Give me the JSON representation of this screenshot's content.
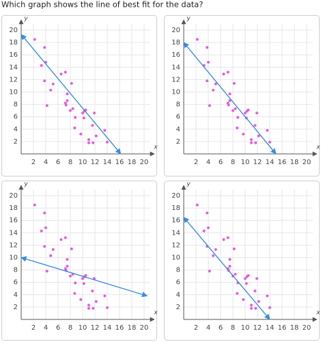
{
  "question": "Which graph shows the line of best fit for the data?",
  "chart_data": [
    {
      "type": "scatter",
      "xlabel": "x",
      "ylabel": "y",
      "xlim": [
        0,
        21
      ],
      "ylim": [
        0,
        21
      ],
      "xticks": [
        2,
        4,
        6,
        8,
        10,
        12,
        14,
        16,
        18,
        20
      ],
      "yticks": [
        2,
        4,
        6,
        8,
        10,
        12,
        14,
        16,
        18,
        20
      ],
      "grid": true,
      "series": [
        {
          "color": "#e45ce0",
          "x": [
            2.2,
            3.3,
            3.8,
            4,
            3.8,
            4.2,
            4.8,
            5.2,
            6.5,
            7.2,
            7.2,
            7.5,
            7.5,
            8,
            8.2,
            8.4,
            8.8,
            8.7,
            9.7,
            10,
            10.3,
            10.5,
            10.2,
            11,
            11,
            11.6,
            11.7,
            11.9,
            12.2,
            13.6,
            14,
            7.3
          ],
          "values": [
            18.5,
            14.3,
            17.2,
            14.8,
            11.8,
            7.8,
            10.3,
            11.3,
            12.9,
            13.2,
            8.2,
            8.6,
            9.7,
            7,
            11.4,
            7.3,
            5.9,
            4.2,
            3.2,
            6.6,
            6.9,
            7.1,
            5.8,
            2.3,
            1.8,
            4.6,
            1.8,
            6.6,
            2.9,
            3.8,
            1.9,
            7.9
          ]
        }
      ],
      "line": {
        "color": "#3a8de0",
        "x": [
          0,
          16.2
        ],
        "values": [
          19.3,
          0
        ]
      }
    },
    {
      "type": "scatter",
      "xlabel": "x",
      "ylabel": "y",
      "xlim": [
        0,
        21
      ],
      "ylim": [
        0,
        21
      ],
      "xticks": [
        2,
        4,
        6,
        8,
        10,
        12,
        14,
        16,
        18,
        20
      ],
      "yticks": [
        2,
        4,
        6,
        8,
        10,
        12,
        14,
        16,
        18,
        20
      ],
      "grid": true,
      "series": [
        {
          "color": "#e45ce0",
          "x": [
            2.2,
            3.3,
            3.8,
            4,
            3.8,
            4.2,
            4.8,
            5.2,
            6.5,
            7.2,
            7.2,
            7.5,
            7.5,
            8,
            8.2,
            8.4,
            8.8,
            8.7,
            9.7,
            10,
            10.3,
            10.5,
            10.2,
            11,
            11,
            11.6,
            11.7,
            11.9,
            12.2,
            13.6,
            14,
            7.3
          ],
          "values": [
            18.5,
            14.3,
            17.2,
            14.8,
            11.8,
            7.8,
            10.3,
            11.3,
            12.9,
            13.2,
            8.2,
            8.6,
            9.7,
            7,
            11.4,
            7.3,
            5.9,
            4.2,
            3.2,
            6.6,
            6.9,
            7.1,
            5.8,
            2.3,
            1.8,
            4.6,
            1.8,
            6.6,
            2.9,
            3.8,
            1.9,
            7.9
          ]
        }
      ],
      "line": {
        "color": "#3a8de0",
        "x": [
          0,
          15
        ],
        "values": [
          18,
          0
        ]
      }
    },
    {
      "type": "scatter",
      "xlabel": "x",
      "ylabel": "y",
      "xlim": [
        0,
        21
      ],
      "ylim": [
        0,
        21
      ],
      "xticks": [
        2,
        4,
        6,
        8,
        10,
        12,
        14,
        16,
        18,
        20
      ],
      "yticks": [
        2,
        4,
        6,
        8,
        10,
        12,
        14,
        16,
        18,
        20
      ],
      "grid": true,
      "series": [
        {
          "color": "#e45ce0",
          "x": [
            2.2,
            3.3,
            3.8,
            4,
            3.8,
            4.2,
            4.8,
            5.2,
            6.5,
            7.2,
            7.2,
            7.5,
            7.5,
            8,
            8.2,
            8.4,
            8.8,
            8.7,
            9.7,
            10,
            10.3,
            10.5,
            10.2,
            11,
            11,
            11.6,
            11.7,
            11.9,
            12.2,
            13.6,
            14,
            7.3
          ],
          "values": [
            18.5,
            14.3,
            17.2,
            14.8,
            11.8,
            7.8,
            10.3,
            11.3,
            12.9,
            13.2,
            8.2,
            8.6,
            9.7,
            7,
            11.4,
            7.3,
            5.9,
            4.2,
            3.2,
            6.6,
            6.9,
            7.1,
            5.8,
            2.3,
            1.8,
            4.6,
            1.8,
            6.6,
            2.9,
            3.8,
            1.9,
            7.9
          ]
        }
      ],
      "line": {
        "color": "#3a8de0",
        "x": [
          0,
          20.5
        ],
        "values": [
          10,
          3.8
        ]
      }
    },
    {
      "type": "scatter",
      "xlabel": "x",
      "ylabel": "y",
      "xlim": [
        0,
        21
      ],
      "ylim": [
        0,
        21
      ],
      "xticks": [
        2,
        4,
        6,
        8,
        10,
        12,
        14,
        16,
        18,
        20
      ],
      "yticks": [
        2,
        4,
        6,
        8,
        10,
        12,
        14,
        16,
        18,
        20
      ],
      "grid": true,
      "series": [
        {
          "color": "#e45ce0",
          "x": [
            2.2,
            3.3,
            3.8,
            4,
            3.8,
            4.2,
            4.8,
            5.2,
            6.5,
            7.2,
            7.2,
            7.5,
            7.5,
            8,
            8.2,
            8.4,
            8.8,
            8.7,
            9.7,
            10,
            10.3,
            10.5,
            10.2,
            11,
            11,
            11.6,
            11.7,
            11.9,
            12.2,
            13.6,
            14,
            7.3
          ],
          "values": [
            18.5,
            14.3,
            17.2,
            14.8,
            11.8,
            7.8,
            10.3,
            11.3,
            12.9,
            13.2,
            8.2,
            8.6,
            9.7,
            7,
            11.4,
            7.3,
            5.9,
            4.2,
            3.2,
            6.6,
            6.9,
            7.1,
            5.8,
            2.3,
            1.8,
            4.6,
            1.8,
            6.6,
            2.9,
            3.8,
            1.9,
            7.9
          ]
        }
      ],
      "line": {
        "color": "#3a8de0",
        "x": [
          0,
          14
        ],
        "values": [
          16.5,
          0
        ]
      }
    }
  ]
}
